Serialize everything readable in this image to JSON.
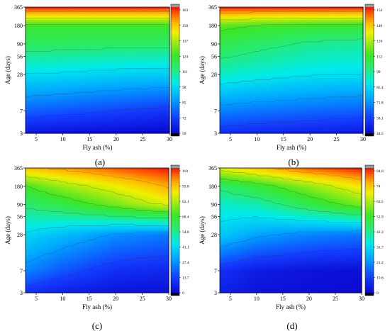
{
  "chart_data": [
    {
      "type": "heatmap",
      "panel_label": "(a)",
      "xlabel": "Fly ash (%)",
      "ylabel": "Age (days)",
      "x_ticks": [
        5,
        10,
        15,
        20,
        25,
        30
      ],
      "y_ticks": [
        3,
        7,
        28,
        56,
        90,
        180,
        365
      ],
      "xlim": [
        3,
        30
      ],
      "ylim": [
        3,
        365
      ],
      "colorbar_ticks": [
        "163",
        "150",
        "137",
        "124",
        "111",
        "98",
        "85",
        "72",
        "59"
      ],
      "vmin": 59,
      "vmax": 168,
      "surface": {
        "x": [
          3,
          10,
          20,
          30
        ],
        "y": [
          3,
          7,
          28,
          90,
          180,
          365
        ],
        "z": [
          [
            62,
            61,
            60,
            58
          ],
          [
            78,
            76,
            73,
            70
          ],
          [
            100,
            99,
            97,
            96
          ],
          [
            118,
            118,
            117,
            117
          ],
          [
            126,
            126,
            126,
            126
          ],
          [
            168,
            168,
            168,
            168
          ]
        ]
      }
    },
    {
      "type": "heatmap",
      "panel_label": "(b)",
      "xlabel": "Fly ash (%)",
      "ylabel": "Age (days)",
      "x_ticks": [
        5,
        10,
        15,
        20,
        25,
        30
      ],
      "y_ticks": [
        3,
        7,
        28,
        56,
        90,
        180,
        365
      ],
      "xlim": [
        3,
        30
      ],
      "ylim": [
        3,
        365
      ],
      "colorbar_ticks": [
        "154",
        "140",
        "126",
        "112",
        "99",
        "85.4",
        "71.8",
        "58.1",
        "44.5"
      ],
      "vmin": 44.5,
      "vmax": 160,
      "surface": {
        "x": [
          3,
          10,
          20,
          30
        ],
        "y": [
          3,
          7,
          28,
          90,
          180,
          365
        ],
        "z": [
          [
            55,
            53,
            51,
            49
          ],
          [
            70,
            68,
            66,
            64
          ],
          [
            95,
            92,
            89,
            88
          ],
          [
            110,
            106,
            101,
            99
          ],
          [
            120,
            117,
            115,
            114
          ],
          [
            160,
            160,
            160,
            160
          ]
        ]
      }
    },
    {
      "type": "heatmap",
      "panel_label": "(c)",
      "xlabel": "Fly ash (%)",
      "ylabel": "Age (days)",
      "x_ticks": [
        5,
        10,
        15,
        20,
        25,
        30
      ],
      "y_ticks": [
        3,
        7,
        28,
        56,
        90,
        180,
        365
      ],
      "xlim": [
        3,
        30
      ],
      "ylim": [
        3,
        365
      ],
      "colorbar_ticks": [
        "110",
        "95.8",
        "82.1",
        "68.4",
        "54.8",
        "41.1",
        "27.4",
        "13.7",
        "0"
      ],
      "vmin": 0,
      "vmax": 115,
      "surface": {
        "x": [
          3,
          10,
          20,
          30
        ],
        "y": [
          3,
          7,
          28,
          90,
          180,
          365
        ],
        "z": [
          [
            10,
            6,
            3,
            2
          ],
          [
            26,
            18,
            10,
            8
          ],
          [
            42,
            36,
            28,
            24
          ],
          [
            60,
            66,
            78,
            90
          ],
          [
            72,
            82,
            92,
            102
          ],
          [
            100,
            104,
            110,
            115
          ]
        ]
      }
    },
    {
      "type": "heatmap",
      "panel_label": "(d)",
      "xlabel": "Fly ash (%)",
      "ylabel": "Age (days)",
      "x_ticks": [
        5,
        10,
        15,
        20,
        25,
        30
      ],
      "y_ticks": [
        3,
        7,
        28,
        56,
        90,
        180,
        365
      ],
      "xlim": [
        3,
        30
      ],
      "ylim": [
        3,
        365
      ],
      "colorbar_ticks": [
        "84.6",
        "74",
        "63.5",
        "52.9",
        "42.3",
        "31.7",
        "21.2",
        "10.6",
        "0"
      ],
      "vmin": 0,
      "vmax": 88,
      "surface": {
        "x": [
          3,
          10,
          20,
          30
        ],
        "y": [
          3,
          7,
          28,
          90,
          180,
          365
        ],
        "z": [
          [
            5,
            2,
            1,
            0
          ],
          [
            8,
            4,
            2,
            1
          ],
          [
            30,
            24,
            20,
            18
          ],
          [
            38,
            40,
            50,
            60
          ],
          [
            46,
            52,
            62,
            72
          ],
          [
            70,
            76,
            84,
            88
          ]
        ]
      }
    }
  ]
}
